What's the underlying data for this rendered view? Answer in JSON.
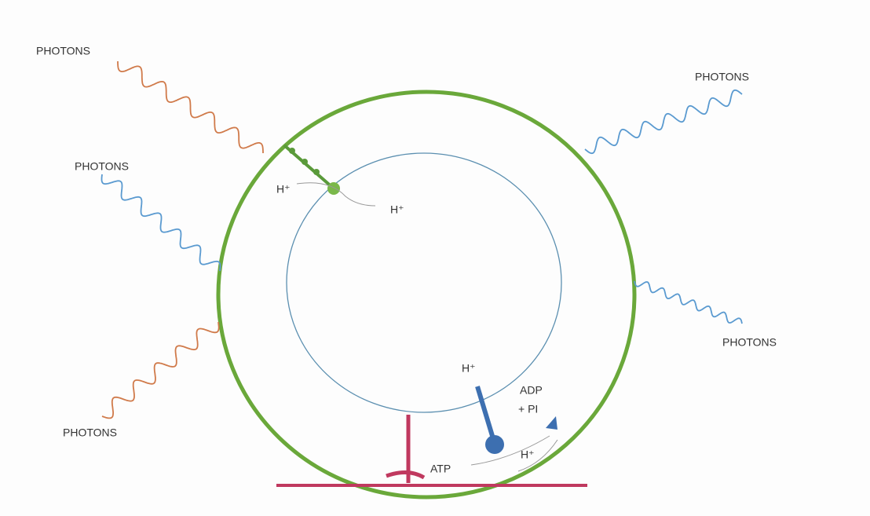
{
  "photon_labels": [
    "PHOTONS",
    "PHOTONS",
    "PHOTONS",
    "PHOTONS",
    "PHOTONS"
  ],
  "proton_labels": [
    "H⁺",
    "H⁺",
    "H⁺",
    "H⁺"
  ],
  "molecule_labels": [
    "ADP",
    "+ PI",
    "ATP"
  ]
}
